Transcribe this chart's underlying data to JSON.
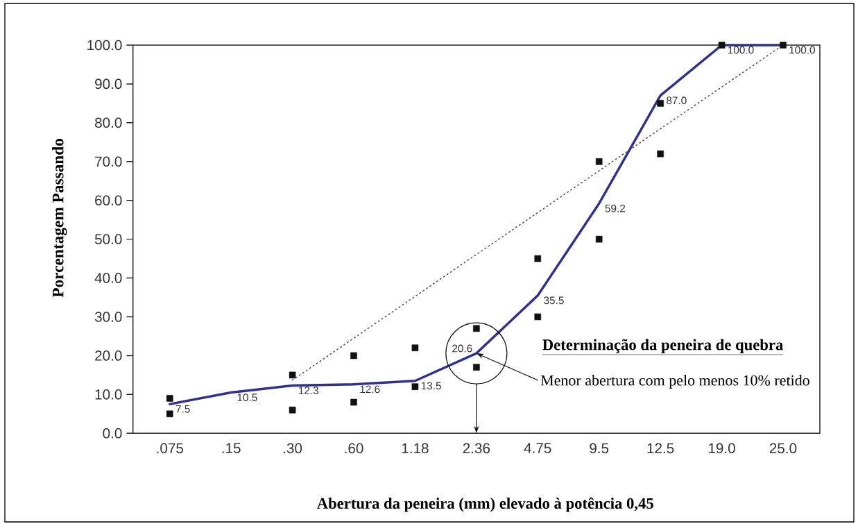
{
  "chart_data": {
    "type": "line",
    "xlabel": "Abertura da peneira (mm) elevado à potência 0,45",
    "ylabel": "Porcentagem Passando",
    "categories": [
      ".075",
      ".15",
      ".30",
      ".60",
      "1.18",
      "2.36",
      "4.75",
      "9.5",
      "12.5",
      "19.0",
      "25.0"
    ],
    "ylim": [
      0,
      100
    ],
    "yticks": [
      {
        "value": 0,
        "label": "0.0"
      },
      {
        "value": 10,
        "label": "10.0"
      },
      {
        "value": 20,
        "label": "20.0"
      },
      {
        "value": 30,
        "label": "30.0"
      },
      {
        "value": 40,
        "label": "40.0"
      },
      {
        "value": 50,
        "label": "50.0"
      },
      {
        "value": 60,
        "label": "60.0"
      },
      {
        "value": 70,
        "label": "70.0"
      },
      {
        "value": 80,
        "label": "80.0"
      },
      {
        "value": 90,
        "label": "90.0"
      },
      {
        "value": 100,
        "label": "100.0"
      }
    ],
    "series": [
      {
        "color": "#555555",
        "line_style": "dotted",
        "marker": "none",
        "x": [
          ".30",
          "25.0"
        ],
        "values": [
          13.7,
          100
        ]
      },
      {
        "color": "#2e3190",
        "line_style": "solid",
        "marker": "none",
        "values": [
          7.5,
          10.5,
          12.3,
          12.6,
          13.5,
          20.6,
          35.5,
          59.2,
          87.0,
          100.0,
          100.0
        ],
        "value_labels": [
          "7.5",
          "10.5",
          "12.3",
          "12.6",
          "13.5",
          "20.6",
          "35.5",
          "59.2",
          "87.0",
          "100.0",
          "100.0"
        ]
      },
      {
        "type": "scatter",
        "color": "#111111",
        "marker": "square",
        "values": [
          9,
          null,
          15,
          20,
          22,
          27,
          45,
          70,
          85,
          100,
          100
        ]
      },
      {
        "type": "scatter",
        "color": "#111111",
        "marker": "square",
        "values": [
          5,
          null,
          6,
          8,
          12,
          17,
          30,
          50,
          72,
          null,
          null
        ]
      }
    ],
    "annotations": [
      "Determinação da peneira de quebra",
      {
        "text": "Menor abertura com pelo menos 10% retido",
        "x": "2.36",
        "y": 20.6
      }
    ]
  }
}
